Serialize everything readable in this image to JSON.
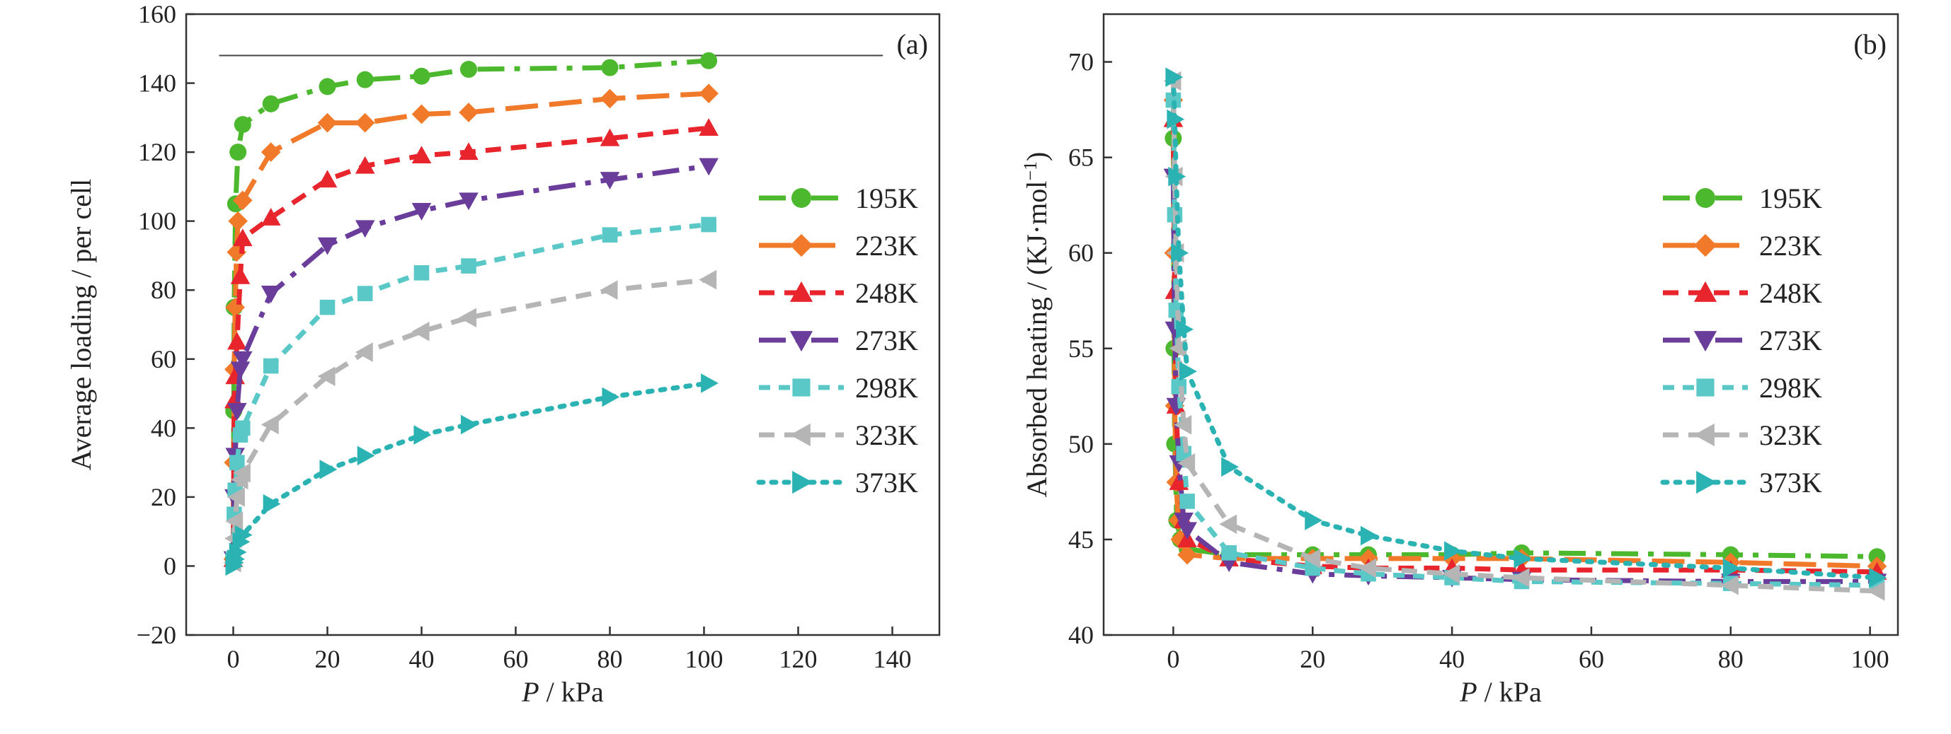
{
  "chart_data": [
    {
      "type": "line",
      "panel_label": "(a)",
      "xlabel_italic": "P",
      "xlabel_rest": " / kPa",
      "ylabel": "Average loading / per cell",
      "xlim": [
        -10,
        150
      ],
      "ylim": [
        -20,
        160
      ],
      "xticks": [
        0,
        20,
        40,
        60,
        80,
        100,
        120,
        140
      ],
      "yticks": [
        -20,
        0,
        20,
        40,
        60,
        80,
        100,
        120,
        140,
        160
      ],
      "reference_line_y": 148,
      "legend_position": "right",
      "series": [
        {
          "name": "195K",
          "color": "#4cb82e",
          "marker": "circle",
          "dash": "dashdot",
          "x": [
            0,
            0.1,
            0.2,
            0.5,
            1,
            2,
            8,
            20,
            28,
            40,
            50,
            80,
            101
          ],
          "y": [
            2,
            45,
            75,
            105,
            120,
            128,
            134,
            139,
            141,
            142,
            144,
            144.5,
            146.5
          ]
        },
        {
          "name": "223K",
          "color": "#f07a2a",
          "marker": "diamond",
          "dash": "longdash",
          "x": [
            0,
            0.1,
            0.2,
            0.4,
            0.7,
            1,
            2,
            8,
            20,
            28,
            40,
            50,
            80,
            101
          ],
          "y": [
            2,
            30,
            57,
            75,
            91,
            100,
            106,
            120,
            128.5,
            128.5,
            131,
            131.5,
            135.5,
            137
          ]
        },
        {
          "name": "248K",
          "color": "#e8252c",
          "marker": "triangle-up",
          "dash": "dash",
          "x": [
            0,
            0.2,
            0.4,
            0.8,
            1.5,
            2,
            8,
            20,
            28,
            40,
            50,
            80,
            101
          ],
          "y": [
            2,
            48,
            55,
            65,
            84,
            95,
            101,
            112,
            116,
            119,
            120,
            124,
            127
          ]
        },
        {
          "name": "273K",
          "color": "#6a3d9a",
          "marker": "triangle-down",
          "dash": "dashdot",
          "x": [
            0,
            0.2,
            0.4,
            0.8,
            1.5,
            2,
            8,
            20,
            28,
            40,
            50,
            80,
            101
          ],
          "y": [
            2,
            20,
            32,
            45,
            57,
            60,
            79,
            93,
            98,
            103,
            106,
            112,
            116
          ]
        },
        {
          "name": "298K",
          "color": "#5bc8c8",
          "marker": "square",
          "dash": "shortdash",
          "x": [
            0,
            0.2,
            0.4,
            0.8,
            1.5,
            2,
            8,
            20,
            28,
            40,
            50,
            80,
            101
          ],
          "y": [
            2,
            15,
            22,
            30,
            38,
            40,
            58,
            75,
            79,
            85,
            87,
            96,
            99
          ]
        },
        {
          "name": "323K",
          "color": "#b5b5b5",
          "marker": "triangle-left",
          "dash": "dash",
          "x": [
            0,
            0.2,
            0.4,
            0.8,
            1.5,
            2,
            8,
            20,
            28,
            40,
            50,
            80,
            101
          ],
          "y": [
            1,
            8,
            13,
            20,
            25,
            27,
            41,
            55,
            62,
            68,
            72,
            80,
            83
          ]
        },
        {
          "name": "373K",
          "color": "#2bb3b3",
          "marker": "triangle-right",
          "dash": "dot",
          "x": [
            0,
            0.2,
            0.4,
            0.8,
            1.5,
            2,
            8,
            20,
            28,
            40,
            50,
            80,
            101
          ],
          "y": [
            0,
            1,
            2,
            4,
            7,
            9,
            18,
            28,
            32,
            38,
            41,
            49,
            53
          ]
        }
      ]
    },
    {
      "type": "line",
      "panel_label": "(b)",
      "xlabel_italic": "P",
      "xlabel_rest": " / kPa",
      "ylabel_main": "Absorbed heating / (KJ·mol",
      "ylabel_sup": "−1",
      "ylabel_tail": ")",
      "xlim": [
        -10,
        104
      ],
      "ylim": [
        40,
        72.5
      ],
      "xticks": [
        0,
        20,
        40,
        60,
        80,
        100
      ],
      "yticks": [
        40,
        45,
        50,
        55,
        60,
        65,
        70
      ],
      "legend_position": "right",
      "series": [
        {
          "name": "195K",
          "color": "#4cb82e",
          "marker": "circle",
          "dash": "dashdot",
          "x": [
            0,
            0.1,
            0.2,
            0.5,
            1,
            2,
            8,
            20,
            28,
            40,
            50,
            80,
            101
          ],
          "y": [
            66,
            55,
            50,
            46,
            45,
            44.5,
            44.2,
            44.2,
            44.2,
            44.2,
            44.3,
            44.2,
            44.1
          ]
        },
        {
          "name": "223K",
          "color": "#f07a2a",
          "marker": "diamond",
          "dash": "longdash",
          "x": [
            0,
            0.1,
            0.2,
            0.4,
            0.7,
            1,
            2,
            8,
            20,
            28,
            40,
            50,
            80,
            101
          ],
          "y": [
            68,
            60,
            52,
            48,
            46,
            45,
            44.2,
            44,
            44,
            44,
            44,
            44,
            43.8,
            43.6
          ]
        },
        {
          "name": "248K",
          "color": "#e8252c",
          "marker": "triangle-up",
          "dash": "dash",
          "x": [
            0,
            0.2,
            0.4,
            0.8,
            1.5,
            2,
            8,
            20,
            28,
            40,
            50,
            80,
            101
          ],
          "y": [
            67,
            58,
            52,
            48,
            46,
            45,
            44,
            43.6,
            43.5,
            43.5,
            43.4,
            43.4,
            43.3
          ]
        },
        {
          "name": "273K",
          "color": "#6a3d9a",
          "marker": "triangle-down",
          "dash": "dashdot",
          "x": [
            0,
            0.2,
            0.4,
            0.8,
            1.5,
            2,
            8,
            20,
            28,
            40,
            50,
            80,
            101
          ],
          "y": [
            64,
            56,
            52,
            49,
            46,
            45.5,
            43.8,
            43.2,
            43.1,
            43.0,
            42.9,
            42.8,
            42.8
          ]
        },
        {
          "name": "298K",
          "color": "#5bc8c8",
          "marker": "square",
          "dash": "shortdash",
          "x": [
            0,
            0.2,
            0.4,
            0.8,
            1.5,
            2,
            8,
            20,
            28,
            40,
            50,
            80,
            101
          ],
          "y": [
            68,
            62,
            57,
            53,
            49.5,
            47,
            44.3,
            43.5,
            43.2,
            43.0,
            42.8,
            42.7,
            42.6
          ]
        },
        {
          "name": "323K",
          "color": "#b5b5b5",
          "marker": "triangle-left",
          "dash": "dash",
          "x": [
            0,
            0.2,
            0.4,
            0.8,
            1.5,
            2,
            8,
            20,
            28,
            40,
            50,
            80,
            101
          ],
          "y": [
            69,
            64,
            60,
            55,
            51,
            49,
            45.8,
            44,
            43.5,
            43.2,
            43.0,
            42.6,
            42.3
          ]
        },
        {
          "name": "373K",
          "color": "#2bb3b3",
          "marker": "triangle-right",
          "dash": "dot",
          "x": [
            0,
            0.2,
            0.4,
            0.8,
            1.5,
            2,
            8,
            20,
            28,
            40,
            50,
            80,
            101
          ],
          "y": [
            69.2,
            67,
            64,
            60,
            56,
            53.8,
            48.8,
            46,
            45.2,
            44.4,
            44,
            43.5,
            43
          ]
        }
      ]
    }
  ]
}
